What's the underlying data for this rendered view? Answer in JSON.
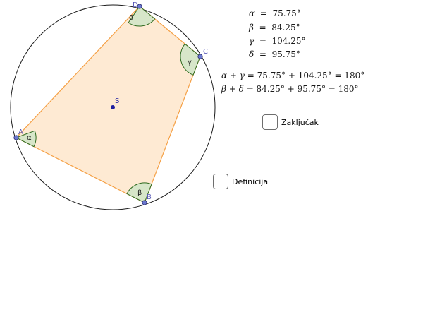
{
  "points": {
    "A": "A",
    "B": "B",
    "C": "C",
    "D": "D",
    "S": "S"
  },
  "angle_labels": {
    "alpha": "α",
    "beta": "β",
    "gamma": "γ",
    "delta": "δ"
  },
  "angle_values": [
    {
      "symbol": "α",
      "value": "75.75°"
    },
    {
      "symbol": "β",
      "value": "84.25°"
    },
    {
      "symbol": "γ",
      "value": "104.25°"
    },
    {
      "symbol": "δ",
      "value": "95.75°"
    }
  ],
  "sums": [
    {
      "lhs": "α + γ",
      "rhs": "= 75.75° + 104.25° = 180°"
    },
    {
      "lhs": "β + δ",
      "rhs": "= 84.25° + 95.75° = 180°"
    }
  ],
  "checkboxes": {
    "conclusion": "Zaključak",
    "definition": "Definicija"
  },
  "colors": {
    "quad_fill": "#fde3c4",
    "quad_stroke": "#f5a045",
    "angle_fill": "#d7e6c9",
    "angle_stroke": "#2e6a1e",
    "point_fill": "#6a77cf",
    "center_fill": "#1f1fa0",
    "label_color": "#5a5ab8"
  }
}
